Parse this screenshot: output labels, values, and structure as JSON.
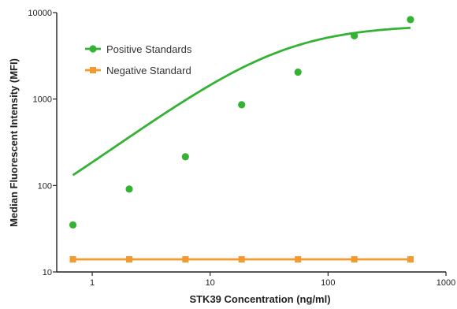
{
  "chart_data": {
    "type": "scatter",
    "xlabel": "STK39 Concentration (ng/ml)",
    "ylabel": "Median Fluorescent Intensity (MFI)",
    "x_scale": "log",
    "y_scale": "log",
    "xlim": [
      0.5,
      1000
    ],
    "ylim": [
      10,
      10000
    ],
    "x_ticks": [
      {
        "value": 1,
        "label": "1"
      },
      {
        "value": 10,
        "label": "10"
      },
      {
        "value": 100,
        "label": "100"
      },
      {
        "value": 1000,
        "label": "1000"
      }
    ],
    "y_ticks": [
      {
        "value": 10,
        "label": "10"
      },
      {
        "value": 100,
        "label": "100"
      },
      {
        "value": 1000,
        "label": "1000"
      },
      {
        "value": 10000,
        "label": "10000"
      }
    ],
    "grid": false,
    "legend_position": "top-left",
    "series": [
      {
        "name": "Positive Standards",
        "color": "#33b233",
        "marker": "circle",
        "points": [
          {
            "x": 0.686,
            "y": 35
          },
          {
            "x": 2.06,
            "y": 91
          },
          {
            "x": 6.17,
            "y": 215
          },
          {
            "x": 18.5,
            "y": 860
          },
          {
            "x": 55.6,
            "y": 2050
          },
          {
            "x": 167,
            "y": 5400
          },
          {
            "x": 500,
            "y": 8300
          }
        ],
        "fit_curve": {
          "model": "4PL",
          "bottom": 10.5,
          "top": 7200,
          "ec50": 40,
          "hill": 1.0,
          "color": "#33b233"
        }
      },
      {
        "name": "Negative Standard",
        "color": "#f29a2e",
        "marker": "square",
        "points": [
          {
            "x": 0.686,
            "y": 14
          },
          {
            "x": 2.06,
            "y": 14
          },
          {
            "x": 6.17,
            "y": 14
          },
          {
            "x": 18.5,
            "y": 14
          },
          {
            "x": 55.6,
            "y": 14
          },
          {
            "x": 167,
            "y": 14
          },
          {
            "x": 500,
            "y": 14
          }
        ]
      }
    ]
  }
}
